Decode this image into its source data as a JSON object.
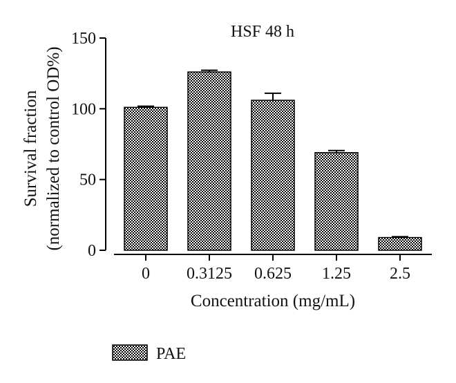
{
  "chart_data": {
    "type": "bar",
    "title": "HSF 48 h",
    "xlabel": "Concentration (mg/mL)",
    "ylabel_line1": "Survival fraction",
    "ylabel_line2": "(normalized to control OD%)",
    "categories": [
      "0",
      "0.3125",
      "0.625",
      "1.25",
      "2.5"
    ],
    "series": [
      {
        "name": "PAE",
        "values": [
          101,
          126,
          106,
          69,
          9
        ],
        "errors": [
          0.8,
          1.2,
          5,
          1.5,
          0.6
        ]
      }
    ],
    "ylim": [
      0,
      150
    ],
    "yticks": [
      0,
      50,
      100,
      150
    ],
    "ytick_labels": [
      "0",
      "50",
      "100",
      "150"
    ],
    "grid": false,
    "legend_position": "bottom-left",
    "colors": {
      "bar_pattern_fg": "#000000",
      "bar_pattern_bg": "#ffffff",
      "axis": "#000000"
    }
  }
}
